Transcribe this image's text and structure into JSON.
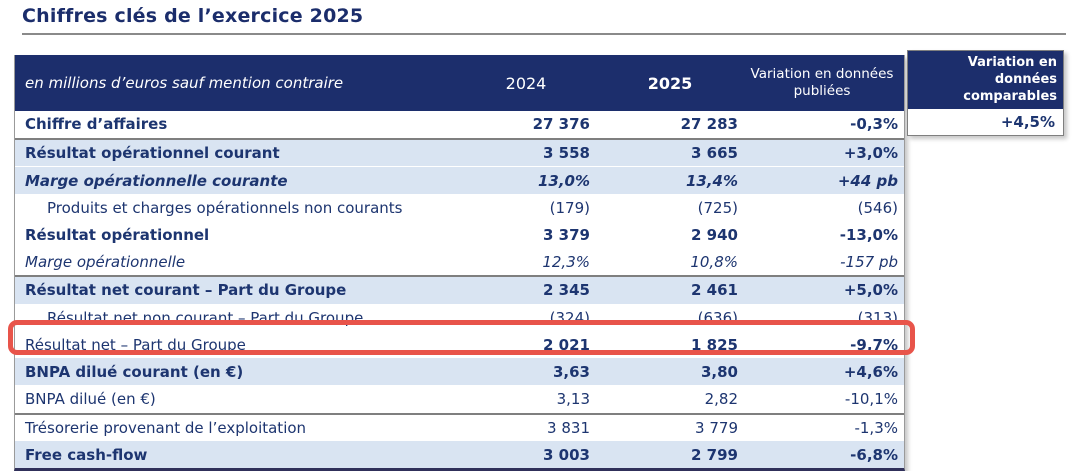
{
  "title": "Chiffres clés de l’exercice 2025",
  "colors": {
    "header_bg": "#1c2e6c",
    "alt_row_bg": "#d9e4f2",
    "text_navy": "#1d3570",
    "highlight_red": "#e8544a",
    "separator_gray": "#7f7f7f"
  },
  "table": {
    "unit_note": "en millions d’euros sauf mention contraire",
    "columns": {
      "year_prev": "2024",
      "year_curr": "2025",
      "variation_published": "Variation en données publiées",
      "variation_comparable": "Variation en données comparables"
    },
    "rows": [
      {
        "label": "Chiffre d’affaires",
        "v2024": "27 376",
        "v2025": "27 283",
        "var_published": "-0,3%",
        "var_comparable": "+4,5%",
        "label_style": "bold",
        "value_style": "bold",
        "bg": "white",
        "indent": false,
        "separator_below": true,
        "highlighted": false
      },
      {
        "label": "Résultat opérationnel courant",
        "v2024": "3 558",
        "v2025": "3 665",
        "var_published": "+3,0%",
        "label_style": "bold",
        "value_style": "bold",
        "bg": "blue",
        "indent": false,
        "separator_below": false,
        "highlighted": false
      },
      {
        "label": "Marge opérationnelle courante",
        "v2024": "13,0%",
        "v2025": "13,4%",
        "var_published": "+44 pb",
        "label_style": "bold-italic",
        "value_style": "bold-italic",
        "bg": "blue",
        "indent": false,
        "separator_below": false,
        "highlighted": false
      },
      {
        "label": "Produits et charges opérationnels non courants",
        "v2024": "(179)",
        "v2025": "(725)",
        "var_published": "(546)",
        "label_style": "regular",
        "value_style": "regular",
        "bg": "white",
        "indent": true,
        "separator_below": false,
        "highlighted": false
      },
      {
        "label": "Résultat opérationnel",
        "v2024": "3 379",
        "v2025": "2 940",
        "var_published": "-13,0%",
        "label_style": "bold",
        "value_style": "bold",
        "bg": "white",
        "indent": false,
        "separator_below": false,
        "highlighted": false
      },
      {
        "label": "Marge opérationnelle",
        "v2024": "12,3%",
        "v2025": "10,8%",
        "var_published": "-157 pb",
        "label_style": "italic",
        "value_style": "italic",
        "bg": "white",
        "indent": false,
        "separator_below": true,
        "highlighted": false
      },
      {
        "label": "Résultat net courant – Part du Groupe",
        "v2024": "2 345",
        "v2025": "2 461",
        "var_published": "+5,0%",
        "label_style": "bold",
        "value_style": "bold",
        "bg": "blue",
        "indent": false,
        "separator_below": false,
        "highlighted": false
      },
      {
        "label": "Résultat net non courant – Part du Groupe",
        "v2024": "(324)",
        "v2025": "(636)",
        "var_published": "(313)",
        "label_style": "regular",
        "value_style": "regular",
        "bg": "white",
        "indent": true,
        "separator_below": false,
        "highlighted": false
      },
      {
        "label": "Résultat net – Part du Groupe",
        "v2024": "2 021",
        "v2025": "1 825",
        "var_published": "-9,7%",
        "label_style": "regular",
        "value_style": "bold",
        "bg": "white",
        "indent": false,
        "separator_below": false,
        "highlighted": true
      },
      {
        "label": "BNPA dilué courant (en €)",
        "v2024": "3,63",
        "v2025": "3,80",
        "var_published": "+4,6%",
        "label_style": "bold",
        "value_style": "bold",
        "bg": "blue",
        "indent": false,
        "separator_below": false,
        "highlighted": false
      },
      {
        "label": "BNPA dilué (en €)",
        "v2024": "3,13",
        "v2025": "2,82",
        "var_published": "-10,1%",
        "label_style": "regular",
        "value_style": "regular",
        "bg": "white",
        "indent": false,
        "separator_below": true,
        "highlighted": false
      },
      {
        "label": "Trésorerie provenant de l’exploitation",
        "v2024": "3 831",
        "v2025": "3 779",
        "var_published": "-1,3%",
        "label_style": "regular",
        "value_style": "regular",
        "bg": "white",
        "indent": false,
        "separator_below": false,
        "highlighted": false
      },
      {
        "label": "Free cash-flow",
        "v2024": "3 003",
        "v2025": "2 799",
        "var_published": "-6,8%",
        "label_style": "bold",
        "value_style": "bold",
        "bg": "blue",
        "indent": false,
        "separator_below": false,
        "highlighted": false
      }
    ]
  }
}
